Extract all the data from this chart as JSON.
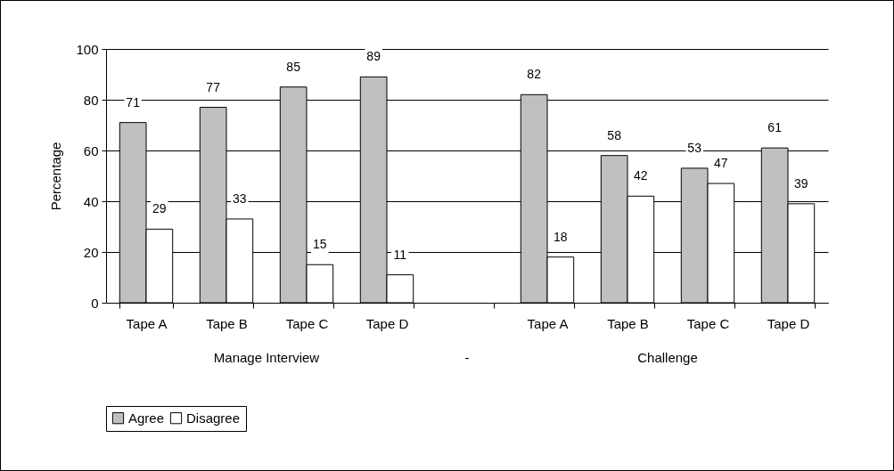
{
  "chart_data": {
    "type": "bar",
    "ylabel": "Percentage",
    "categories": [
      "Tape A",
      "Tape B",
      "Tape C",
      "Tape D",
      null,
      "Tape A",
      "Tape B",
      "Tape C",
      "Tape D"
    ],
    "series": [
      {
        "name": "Agree",
        "color": "#c0c0c0",
        "values": [
          71,
          77,
          85,
          89,
          null,
          82,
          58,
          53,
          61
        ]
      },
      {
        "name": "Disagree",
        "color": "#ffffff",
        "values": [
          29,
          33,
          15,
          11,
          null,
          18,
          42,
          47,
          39
        ]
      }
    ],
    "ylim": [
      0,
      100
    ],
    "yticks": [
      0,
      20,
      40,
      60,
      80,
      100
    ],
    "grid": "y",
    "legend": "bottom",
    "data_labels": true,
    "annotations": [
      "Manage Interview",
      "-",
      "Challenge"
    ]
  }
}
